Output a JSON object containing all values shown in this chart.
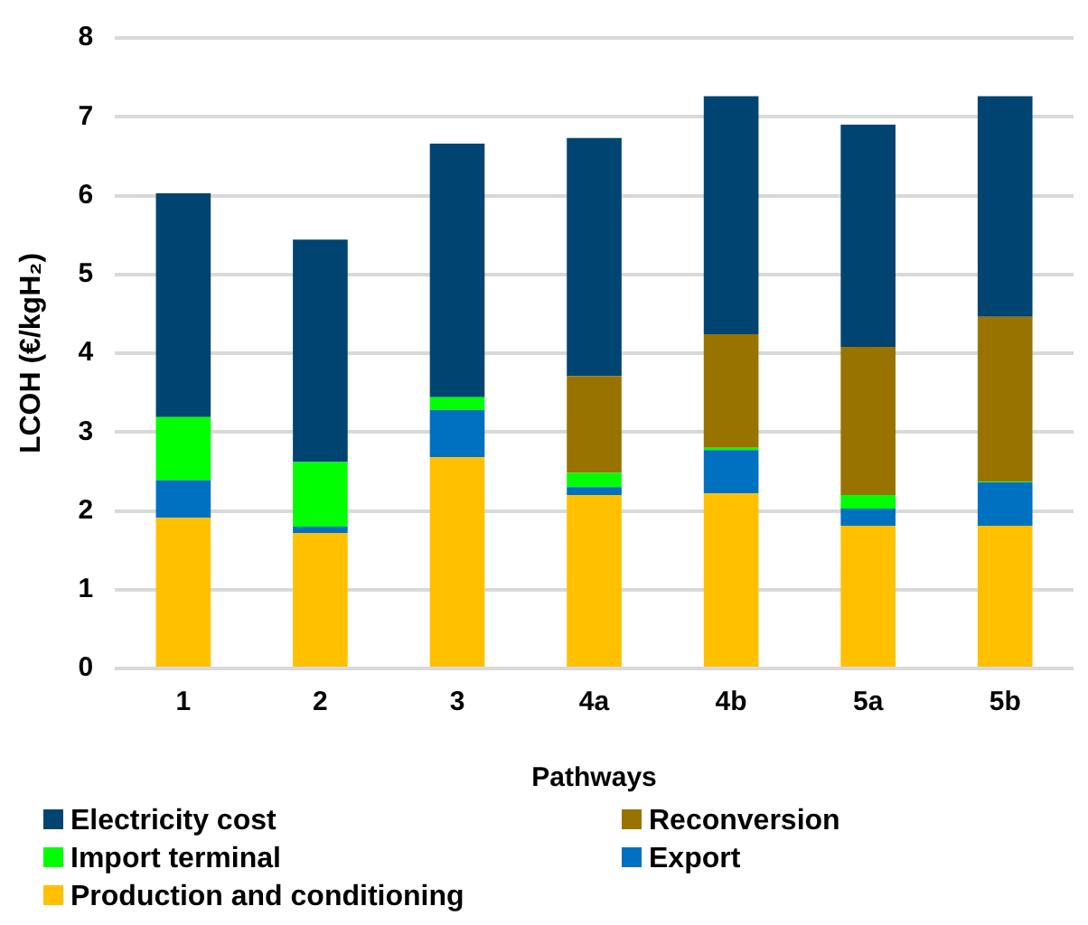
{
  "chart_data": {
    "type": "bar",
    "stacked": true,
    "xlabel": "Pathways",
    "ylabel": "LCOH (€/kgH₂)",
    "categories": [
      "1",
      "2",
      "3",
      "4a",
      "4b",
      "5a",
      "5b"
    ],
    "series": [
      {
        "name": "Production and conditioning",
        "color": "#ffc000",
        "values": [
          1.91,
          1.72,
          2.68,
          2.2,
          2.22,
          1.81,
          1.81
        ]
      },
      {
        "name": "Export",
        "color": "#0070c0",
        "values": [
          0.48,
          0.08,
          0.6,
          0.1,
          0.55,
          0.22,
          0.55
        ]
      },
      {
        "name": "Import terminal",
        "color": "#00ff00",
        "values": [
          0.8,
          0.82,
          0.16,
          0.18,
          0.03,
          0.17,
          0.01
        ]
      },
      {
        "name": "Reconversion",
        "color": "#997300",
        "values": [
          0,
          0,
          0,
          1.23,
          1.44,
          1.88,
          2.09
        ]
      },
      {
        "name": "Electricity cost",
        "color": "#004472",
        "values": [
          2.84,
          2.82,
          3.22,
          3.02,
          3.02,
          2.82,
          2.8
        ]
      }
    ],
    "ylim": [
      0,
      8
    ],
    "yticks": [
      0,
      1,
      2,
      3,
      4,
      5,
      6,
      7,
      8
    ],
    "grid": "y",
    "legend": "bottom"
  }
}
